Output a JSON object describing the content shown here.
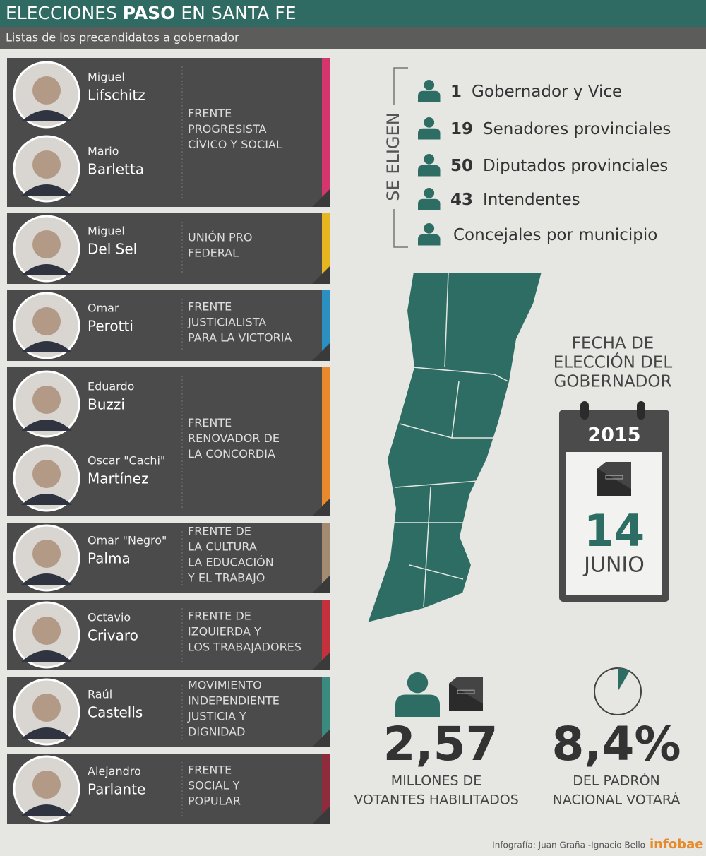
{
  "header": {
    "title_parts": [
      "ELECCIONES ",
      "PASO",
      " EN SANTA FE"
    ],
    "subtitle": "Listas de los precandidatos a gobernador"
  },
  "lists": [
    {
      "color": "#d4356c",
      "candidates": [
        {
          "first": "Miguel",
          "last": "Lifschitz"
        },
        {
          "first": "Mario",
          "last": "Barletta"
        }
      ],
      "front": [
        "FRENTE",
        "PROGRESISTA",
        "CÍVICO Y SOCIAL"
      ]
    },
    {
      "color": "#e6b51f",
      "candidates": [
        {
          "first": "Miguel",
          "last": "Del Sel"
        }
      ],
      "front": [
        "UNIÓN PRO",
        "FEDERAL"
      ]
    },
    {
      "color": "#2b8fc2",
      "candidates": [
        {
          "first": "Omar",
          "last": "Perotti"
        }
      ],
      "front": [
        "FRENTE",
        "JUSTICIALISTA",
        "PARA LA VICTORIA"
      ]
    },
    {
      "color": "#e88a2b",
      "candidates": [
        {
          "first": "Eduardo",
          "last": "Buzzi"
        },
        {
          "first": "Oscar \"Cachi\"",
          "last": "Martínez"
        }
      ],
      "front": [
        "FRENTE",
        "RENOVADOR DE",
        "LA CONCORDIA"
      ]
    },
    {
      "color": "#a38b72",
      "candidates": [
        {
          "first": "Omar \"Negro\"",
          "last": "Palma"
        }
      ],
      "front": [
        "FRENTE DE",
        "LA CULTURA",
        "LA EDUCACIÓN",
        "Y EL TRABAJO"
      ]
    },
    {
      "color": "#c4303b",
      "candidates": [
        {
          "first": "Octavio",
          "last": "Crivaro"
        }
      ],
      "front": [
        "FRENTE DE",
        "IZQUIERDA Y",
        "LOS TRABAJADORES"
      ]
    },
    {
      "color": "#3a8a80",
      "candidates": [
        {
          "first": "Raúl",
          "last": "Castells"
        }
      ],
      "front": [
        "MOVIMIENTO",
        "INDEPENDIENTE",
        "JUSTICIA Y",
        "DIGNIDAD"
      ]
    },
    {
      "color": "#8e2b3d",
      "candidates": [
        {
          "first": "Alejandro",
          "last": "Parlante"
        }
      ],
      "front": [
        "FRENTE",
        "SOCIAL Y",
        "POPULAR"
      ]
    }
  ],
  "elect": {
    "heading": "SE ELIGEN",
    "items": [
      {
        "count": "1",
        "label": "Gobernador y Vice"
      },
      {
        "count": "19",
        "label": "Senadores provinciales"
      },
      {
        "count": "50",
        "label": "Diputados provinciales"
      },
      {
        "count": "43",
        "label": "Intendentes"
      },
      {
        "label": "Concejales por municipio"
      }
    ]
  },
  "date": {
    "heading": [
      "FECHA DE",
      "ELECCIÓN DEL",
      "GOBERNADOR"
    ],
    "year": "2015",
    "day": "14",
    "month": "JUNIO"
  },
  "voters": {
    "value": "2,57",
    "caption": [
      "MILLONES DE",
      "VOTANTES HABILITADOS"
    ]
  },
  "share": {
    "value": 8.4,
    "label": "8,4%",
    "caption": [
      "DEL PADRÓN",
      "NACIONAL VOTARÁ"
    ]
  },
  "footer": {
    "credit": "Infografía: Juan Graña -Ignacio Bello",
    "brand": "infobae"
  }
}
